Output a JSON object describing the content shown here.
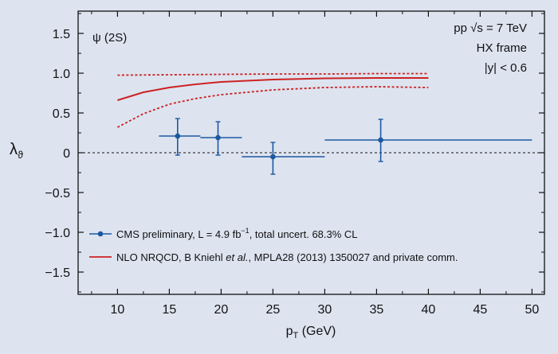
{
  "chart_data": {
    "type": "scatter",
    "title": "",
    "panel_label": "ψ (2S)",
    "annotations": [
      "pp √s = 7 TeV",
      "HX frame",
      "|y| < 0.6"
    ],
    "xlabel": "p",
    "xlabel_sub": "T",
    "xlabel_unit": " (GeV)",
    "ylabel": "λ",
    "ylabel_sub": "ϑ",
    "xlim": [
      6.2,
      51.2
    ],
    "ylim": [
      -1.78,
      1.78
    ],
    "xticks": [
      10,
      15,
      20,
      25,
      30,
      35,
      40,
      45,
      50
    ],
    "yticks": [
      1.5,
      1.0,
      0.5,
      0,
      -0.5,
      -1.0,
      -1.5
    ],
    "ytick_labels": [
      "1.5",
      "1.0",
      "0.5",
      "0",
      "−0.5",
      "−1.0",
      "−1.5"
    ],
    "zero_line": "dashed",
    "legend_position": "bottom-left",
    "colors": {
      "data": "#1d58a0",
      "theory": "#cc2222",
      "axes": "#111111",
      "background": "#dde4f0"
    },
    "series": [
      {
        "name": "CMS preliminary, L = 4.9 fb⁻¹, total uncert. 68.3% CL",
        "legend_parts": {
          "main": "CMS preliminary, L = 4.9 fb",
          "sup": "−1",
          "tail": ", total uncert. 68.3% CL"
        },
        "style": "points-with-errors",
        "points": [
          {
            "x": 15.8,
            "y": 0.21,
            "xlow": 14.0,
            "xhigh": 18.0,
            "ylow": -0.03,
            "yhigh": 0.43
          },
          {
            "x": 19.7,
            "y": 0.19,
            "xlow": 18.0,
            "xhigh": 22.0,
            "ylow": -0.03,
            "yhigh": 0.39
          },
          {
            "x": 25.0,
            "y": -0.05,
            "xlow": 22.0,
            "xhigh": 30.0,
            "ylow": -0.27,
            "yhigh": 0.13
          },
          {
            "x": 35.4,
            "y": 0.16,
            "xlow": 30.0,
            "xhigh": 50.0,
            "ylow": -0.11,
            "yhigh": 0.42
          }
        ]
      },
      {
        "name": "NLO NRQCD, B Kniehl et al., MPLA28 (2013) 1350027 and private comm.",
        "legend_parts": {
          "main": "NLO NRQCD, B Kniehl ",
          "italic": "et al.",
          "tail": ", MPLA28 (2013) 1350027 and private comm."
        },
        "style": "band",
        "central": {
          "x": [
            10,
            12.5,
            15,
            17.5,
            20,
            25,
            30,
            35,
            40
          ],
          "y": [
            0.66,
            0.76,
            0.82,
            0.86,
            0.89,
            0.92,
            0.935,
            0.94,
            0.94
          ]
        },
        "upper": {
          "x": [
            10,
            15,
            20,
            25,
            30,
            35,
            40
          ],
          "y": [
            0.975,
            0.98,
            0.985,
            0.99,
            0.99,
            0.995,
            0.995
          ]
        },
        "lower": {
          "x": [
            10,
            12.5,
            15,
            17.5,
            20,
            25,
            30,
            35,
            40
          ],
          "y": [
            0.32,
            0.49,
            0.61,
            0.68,
            0.73,
            0.79,
            0.82,
            0.83,
            0.82
          ]
        }
      }
    ]
  }
}
